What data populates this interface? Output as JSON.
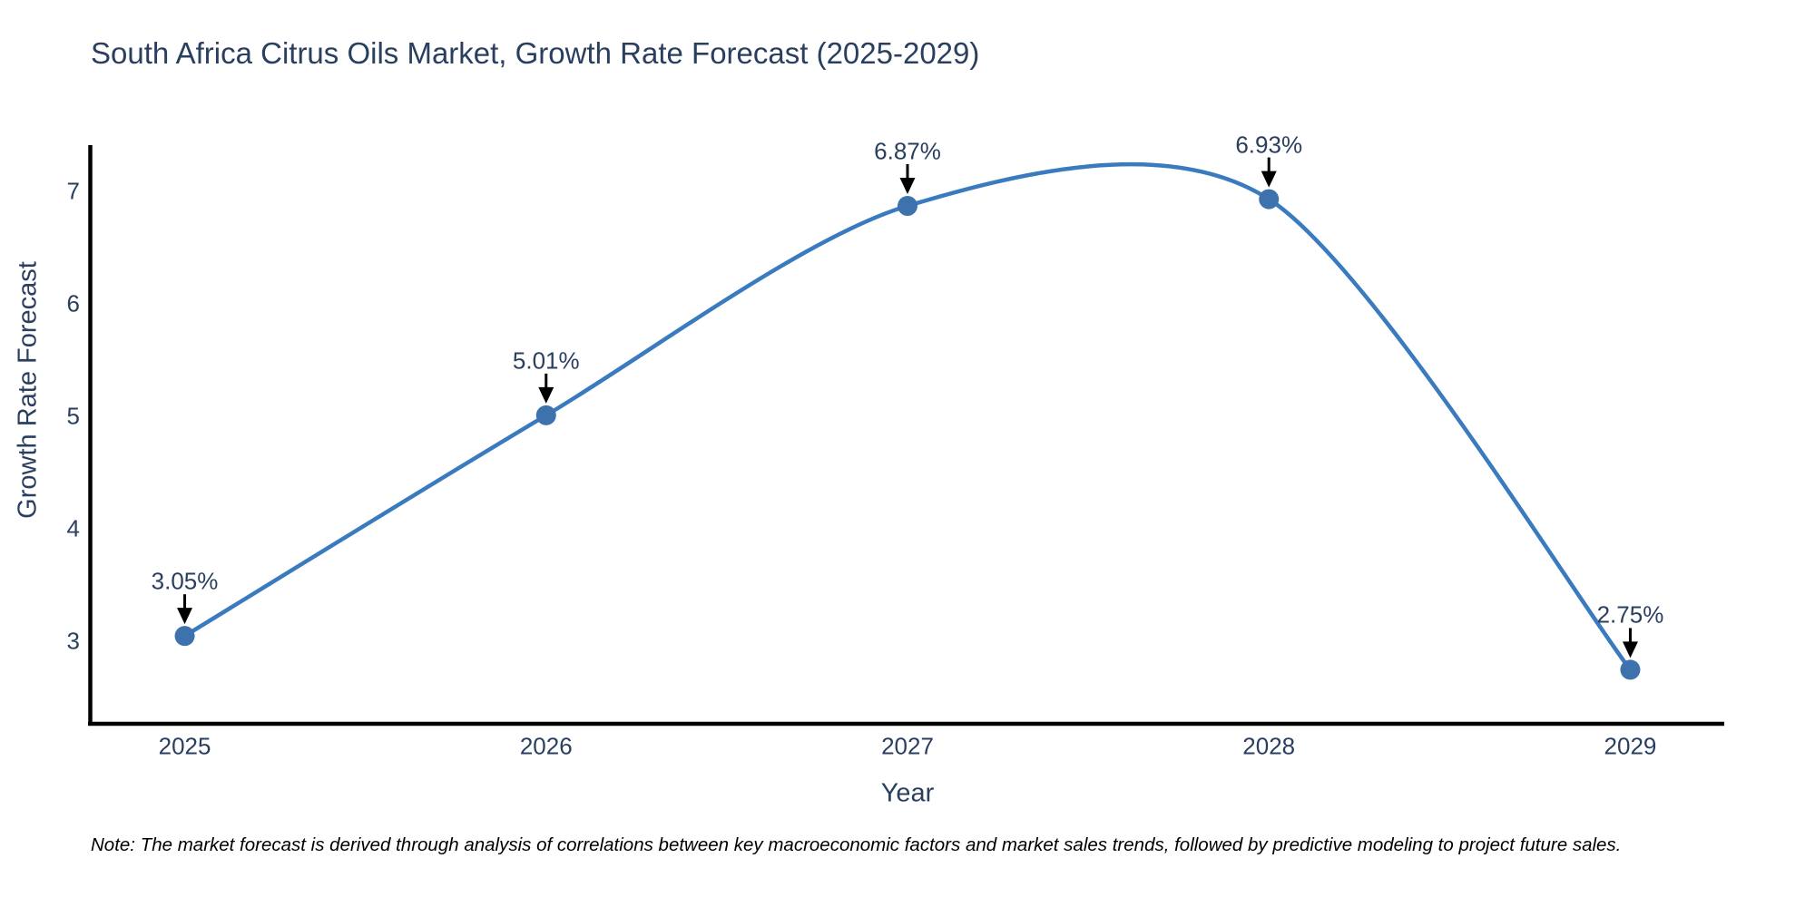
{
  "footnote": "Note: The market forecast is derived through analysis of correlations between key macroeconomic factors and market sales trends, followed by predictive modeling to project future sales.",
  "chart_data": {
    "type": "line",
    "line_shape": "spline",
    "title": "South Africa Citrus Oils Market, Growth Rate Forecast (2025-2029)",
    "xlabel": "Year",
    "ylabel": "Growth Rate Forecast",
    "x": [
      2025,
      2026,
      2027,
      2028,
      2029
    ],
    "xticks": [
      "2025",
      "2026",
      "2027",
      "2028",
      "2029"
    ],
    "values": [
      3.05,
      5.01,
      6.87,
      6.93,
      2.75
    ],
    "point_labels": [
      "3.05%",
      "5.01%",
      "6.87%",
      "6.93%",
      "2.75%"
    ],
    "yticks": [
      3,
      4,
      5,
      6,
      7
    ],
    "xlim": [
      2024.74,
      2029.26
    ],
    "ylim": [
      2.27,
      7.41
    ],
    "grid": false,
    "legend": "none",
    "colors": {
      "line": "#3a7abf",
      "marker": "#3d72ac",
      "axis": "#000000",
      "text": "#2a3f5f",
      "arrow": "#000000",
      "note": "#000000"
    }
  }
}
